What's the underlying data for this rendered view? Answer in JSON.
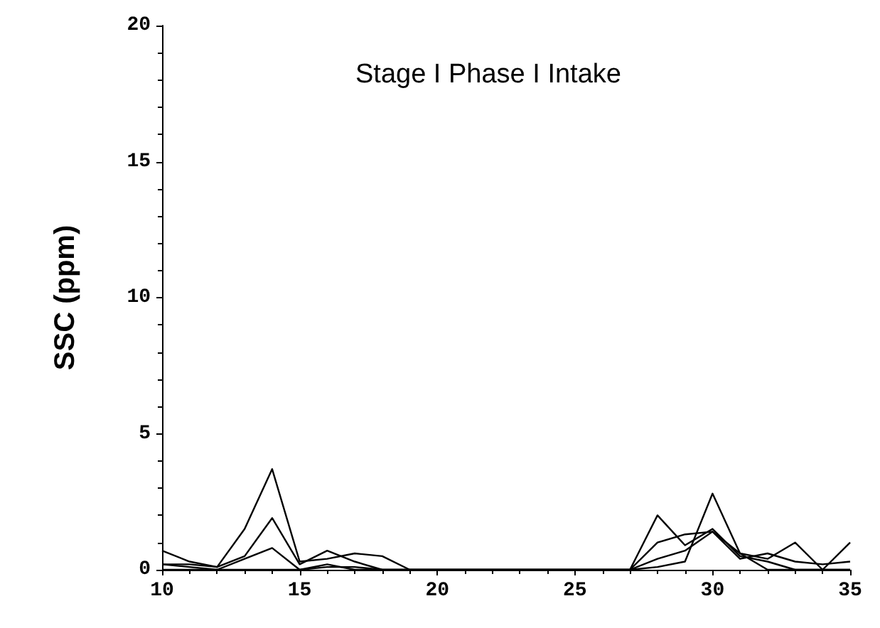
{
  "chart_data": {
    "type": "line",
    "title": "Stage I Phase I Intake",
    "ylabel": "SSC (ppm)",
    "x": [
      10,
      11,
      12,
      13,
      14,
      15,
      16,
      17,
      18,
      19,
      20,
      21,
      22,
      23,
      24,
      25,
      26,
      27,
      28,
      29,
      30,
      31,
      32,
      33,
      34,
      35
    ],
    "series": [
      {
        "color": "#000000",
        "values": [
          0.7,
          0.3,
          0.1,
          1.5,
          3.7,
          0.3,
          0.4,
          0.6,
          0.5,
          0,
          0,
          0,
          0,
          0,
          0,
          0,
          0,
          0,
          2.0,
          0.9,
          1.5,
          0.5,
          0.3,
          0,
          0,
          0
        ]
      },
      {
        "color": "#000000",
        "values": [
          0.2,
          0.2,
          0.1,
          0.5,
          1.9,
          0.2,
          0.7,
          0.3,
          0,
          0,
          0,
          0,
          0,
          0,
          0,
          0,
          0,
          0,
          1.0,
          1.3,
          1.4,
          0.6,
          0.4,
          1.0,
          0,
          1.0
        ]
      },
      {
        "color": "#000000",
        "values": [
          0.2,
          0.1,
          0,
          0.4,
          0.8,
          0,
          0.2,
          0,
          0,
          0,
          0,
          0,
          0,
          0,
          0,
          0,
          0,
          0,
          0.4,
          0.7,
          1.4,
          0.4,
          0.6,
          0.3,
          0.2,
          0.3
        ]
      },
      {
        "color": "#000000",
        "values": [
          0,
          0,
          0,
          0,
          0,
          0,
          0.1,
          0.1,
          0,
          0,
          0,
          0,
          0,
          0,
          0,
          0,
          0,
          0,
          0.1,
          0.3,
          2.8,
          0.6,
          0,
          0,
          0,
          0
        ]
      }
    ],
    "xlim": [
      10,
      35
    ],
    "xticks": [
      10,
      15,
      20,
      25,
      30,
      35
    ],
    "ylim": [
      0,
      20
    ],
    "yticks": [
      0,
      5,
      10,
      15,
      20
    ],
    "grid": false,
    "marker": "none",
    "line_style": "solid"
  }
}
